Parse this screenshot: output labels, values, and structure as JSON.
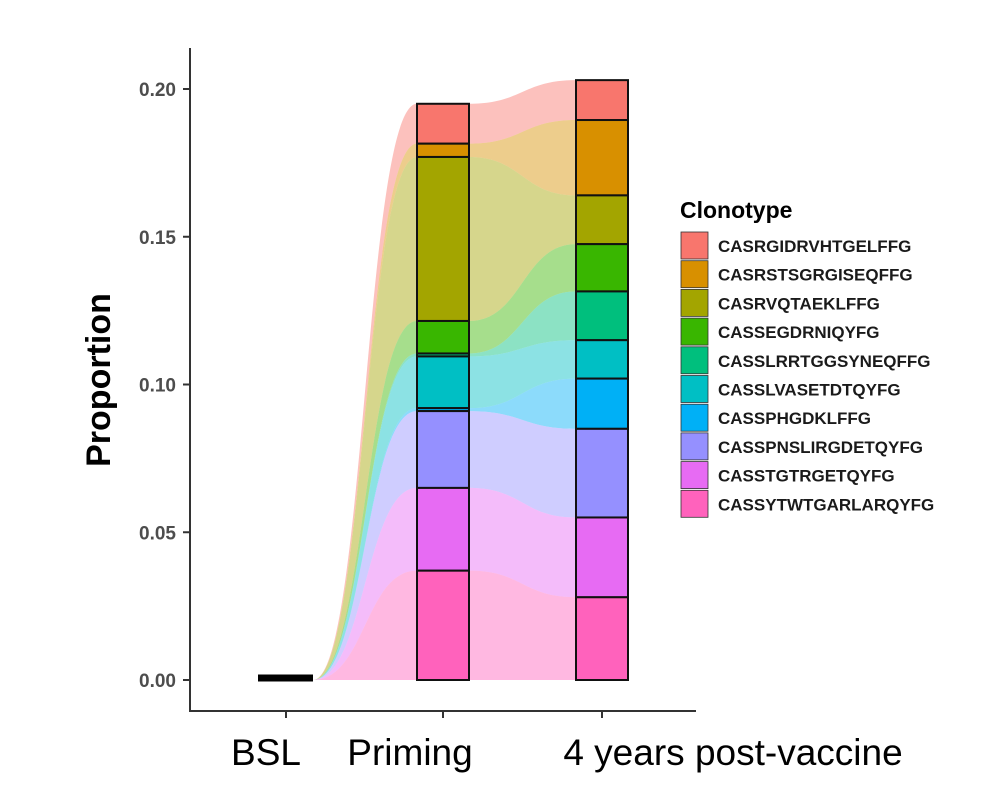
{
  "chart_data": {
    "type": "alluvial-stacked-bar",
    "title": "",
    "xlabel": "",
    "ylabel": "Proportion",
    "ylim": [
      0,
      0.205
    ],
    "yticks": [
      "0.00",
      "0.05",
      "0.10",
      "0.15",
      "0.20"
    ],
    "ytick_values": [
      0,
      0.05,
      0.1,
      0.15,
      0.2
    ],
    "grid": false,
    "legend_position": "right",
    "legend_title": "Clonotype",
    "categories": [
      "BSL",
      "Priming",
      "4 years post-vaccine"
    ],
    "series": [
      {
        "name": "CASRGIDRVHTGELFFG",
        "color": "#F8766D",
        "values": [
          0,
          0.0135,
          0.0135
        ]
      },
      {
        "name": "CASRSTSGRGISEQFFG",
        "color": "#D89000",
        "values": [
          0,
          0.0045,
          0.0255
        ]
      },
      {
        "name": "CASRVQTAEKLFFG",
        "color": "#A3A500",
        "values": [
          0,
          0.0555,
          0.0165
        ]
      },
      {
        "name": "CASSEGDRNIQYFG",
        "color": "#39B600",
        "values": [
          0,
          0.011,
          0.016
        ]
      },
      {
        "name": "CASSLRRTGGSYNEQFFG",
        "color": "#00BF7D",
        "values": [
          0,
          0.001,
          0.0165
        ]
      },
      {
        "name": "CASSLVASETDTQYFG",
        "color": "#00BFC4",
        "values": [
          0,
          0.0175,
          0.013
        ]
      },
      {
        "name": "CASSPHGDKLFFG",
        "color": "#00B0F6",
        "values": [
          0,
          0.001,
          0.017
        ]
      },
      {
        "name": "CASSPNSLIRGDETQYFG",
        "color": "#9590FF",
        "values": [
          0,
          0.026,
          0.03
        ]
      },
      {
        "name": "CASSTGTRGETQYFG",
        "color": "#E76BF3",
        "values": [
          0,
          0.028,
          0.027
        ]
      },
      {
        "name": "CASSYTWTGARLARQYFG",
        "color": "#FF62BC",
        "values": [
          0,
          0.037,
          0.028
        ]
      }
    ]
  }
}
